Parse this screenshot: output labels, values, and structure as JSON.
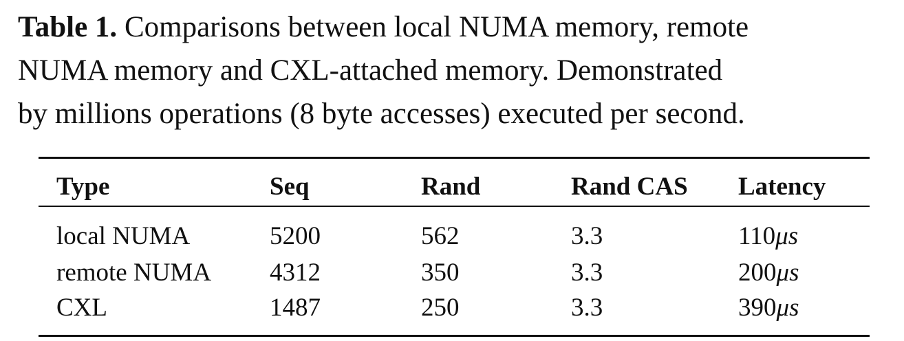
{
  "caption": {
    "label": "Table 1.",
    "line1": " Comparisons between local NUMA memory, remote",
    "line2": "NUMA memory and CXL-attached memory. Demonstrated",
    "line3": "by millions operations (8 byte accesses) executed per second."
  },
  "table": {
    "headers": [
      "Type",
      "Seq",
      "Rand",
      "Rand CAS",
      "Latency"
    ],
    "latency_unit": "μs",
    "rows": [
      {
        "type": "local NUMA",
        "seq": "5200",
        "rand": "562",
        "rand_cas": "3.3",
        "latency": "110"
      },
      {
        "type": "remote NUMA",
        "seq": "4312",
        "rand": "350",
        "rand_cas": "3.3",
        "latency": "200"
      },
      {
        "type": "CXL",
        "seq": "1487",
        "rand": "250",
        "rand_cas": "3.3",
        "latency": "390"
      }
    ]
  }
}
